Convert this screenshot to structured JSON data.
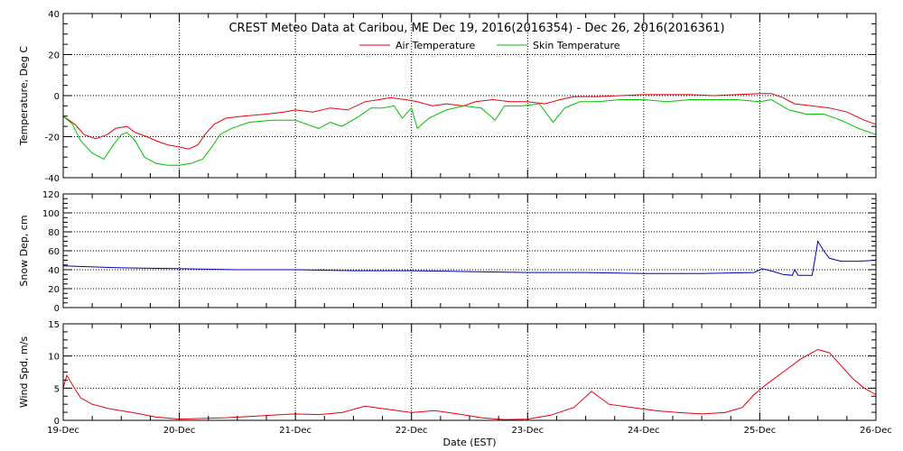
{
  "chart_data": {
    "type": "line",
    "title": "CREST Meteo Data at Caribou, ME   Dec 19, 2016(2016354) - Dec 26, 2016(2016361)",
    "xlabel": "Date (EST)",
    "x_ticks": [
      "19-Dec",
      "20-Dec",
      "21-Dec",
      "22-Dec",
      "23-Dec",
      "24-Dec",
      "25-Dec",
      "26-Dec"
    ],
    "xlim": [
      "19-Dec",
      "26-Dec"
    ],
    "panels": [
      {
        "ylabel": "Temperature, Deg C",
        "ylim": [
          -40,
          40
        ],
        "yticks": [
          -40,
          -20,
          0,
          20,
          40
        ],
        "legend": "top-center",
        "series": [
          {
            "name": "Air Temperature",
            "color": "#e8000b",
            "points": [
              [
                0,
                -10
              ],
              [
                0.1,
                -14
              ],
              [
                0.18,
                -19
              ],
              [
                0.28,
                -21
              ],
              [
                0.38,
                -19
              ],
              [
                0.45,
                -16
              ],
              [
                0.55,
                -15
              ],
              [
                0.62,
                -18
              ],
              [
                0.72,
                -20
              ],
              [
                0.8,
                -22
              ],
              [
                0.9,
                -24
              ],
              [
                1.0,
                -25
              ],
              [
                1.08,
                -26
              ],
              [
                1.16,
                -24
              ],
              [
                1.22,
                -19
              ],
              [
                1.3,
                -14
              ],
              [
                1.4,
                -11
              ],
              [
                1.55,
                -10
              ],
              [
                1.75,
                -9
              ],
              [
                1.9,
                -8
              ],
              [
                2.0,
                -7
              ],
              [
                2.15,
                -8
              ],
              [
                2.3,
                -6
              ],
              [
                2.45,
                -7
              ],
              [
                2.6,
                -3
              ],
              [
                2.72,
                -2
              ],
              [
                2.82,
                -1
              ],
              [
                2.95,
                -2
              ],
              [
                3.05,
                -3
              ],
              [
                3.18,
                -5
              ],
              [
                3.3,
                -4
              ],
              [
                3.45,
                -5
              ],
              [
                3.55,
                -3
              ],
              [
                3.7,
                -2
              ],
              [
                3.85,
                -3
              ],
              [
                4.0,
                -3
              ],
              [
                4.15,
                -4
              ],
              [
                4.28,
                -2
              ],
              [
                4.4,
                -0.5
              ],
              [
                4.6,
                -0.5
              ],
              [
                4.8,
                0
              ],
              [
                5.0,
                0.5
              ],
              [
                5.2,
                0.5
              ],
              [
                5.4,
                0.5
              ],
              [
                5.6,
                0
              ],
              [
                5.8,
                0.5
              ],
              [
                6.0,
                1
              ],
              [
                6.1,
                1
              ],
              [
                6.2,
                -1
              ],
              [
                6.3,
                -4
              ],
              [
                6.45,
                -5
              ],
              [
                6.6,
                -6
              ],
              [
                6.75,
                -8
              ],
              [
                6.9,
                -12
              ],
              [
                7.0,
                -14
              ]
            ]
          },
          {
            "name": "Skin Temperature",
            "color": "#00c000",
            "points": [
              [
                0,
                -10
              ],
              [
                0.08,
                -14
              ],
              [
                0.15,
                -22
              ],
              [
                0.25,
                -28
              ],
              [
                0.35,
                -31
              ],
              [
                0.42,
                -25
              ],
              [
                0.5,
                -19
              ],
              [
                0.55,
                -18
              ],
              [
                0.62,
                -22
              ],
              [
                0.7,
                -30
              ],
              [
                0.8,
                -33
              ],
              [
                0.9,
                -34
              ],
              [
                1.0,
                -34
              ],
              [
                1.1,
                -33
              ],
              [
                1.2,
                -31
              ],
              [
                1.28,
                -25
              ],
              [
                1.35,
                -19
              ],
              [
                1.45,
                -16
              ],
              [
                1.6,
                -13
              ],
              [
                1.8,
                -12
              ],
              [
                2.0,
                -12
              ],
              [
                2.1,
                -14
              ],
              [
                2.2,
                -16
              ],
              [
                2.3,
                -13
              ],
              [
                2.4,
                -15
              ],
              [
                2.55,
                -10
              ],
              [
                2.65,
                -6
              ],
              [
                2.75,
                -6
              ],
              [
                2.85,
                -5
              ],
              [
                2.92,
                -11
              ],
              [
                3.0,
                -6
              ],
              [
                3.05,
                -16
              ],
              [
                3.15,
                -11
              ],
              [
                3.3,
                -7
              ],
              [
                3.45,
                -5
              ],
              [
                3.6,
                -6
              ],
              [
                3.72,
                -12
              ],
              [
                3.8,
                -5
              ],
              [
                3.95,
                -5
              ],
              [
                4.1,
                -4
              ],
              [
                4.22,
                -13
              ],
              [
                4.32,
                -6
              ],
              [
                4.45,
                -3
              ],
              [
                4.6,
                -3
              ],
              [
                4.8,
                -2
              ],
              [
                5.0,
                -2
              ],
              [
                5.2,
                -3
              ],
              [
                5.4,
                -2
              ],
              [
                5.6,
                -2
              ],
              [
                5.8,
                -2
              ],
              [
                6.0,
                -3
              ],
              [
                6.1,
                -2
              ],
              [
                6.25,
                -7
              ],
              [
                6.4,
                -9
              ],
              [
                6.55,
                -9
              ],
              [
                6.7,
                -12
              ],
              [
                6.85,
                -16
              ],
              [
                7.0,
                -19
              ]
            ]
          }
        ]
      },
      {
        "ylabel": "Snow Dep, cm",
        "ylim": [
          0,
          120
        ],
        "yticks": [
          0,
          20,
          40,
          60,
          80,
          100,
          120
        ],
        "series": [
          {
            "color": "#0000b0",
            "points": [
              [
                0,
                44
              ],
              [
                0.5,
                42
              ],
              [
                1.0,
                41
              ],
              [
                1.5,
                40
              ],
              [
                2.0,
                40
              ],
              [
                2.5,
                39
              ],
              [
                3.0,
                39
              ],
              [
                3.5,
                38
              ],
              [
                4.0,
                37
              ],
              [
                4.5,
                37
              ],
              [
                5.0,
                36
              ],
              [
                5.5,
                36
              ],
              [
                5.95,
                37
              ],
              [
                6.02,
                41
              ],
              [
                6.12,
                38
              ],
              [
                6.2,
                35
              ],
              [
                6.28,
                34
              ],
              [
                6.3,
                40
              ],
              [
                6.33,
                34
              ],
              [
                6.45,
                34
              ],
              [
                6.47,
                48
              ],
              [
                6.5,
                70
              ],
              [
                6.55,
                60
              ],
              [
                6.6,
                52
              ],
              [
                6.7,
                49
              ],
              [
                6.85,
                49
              ],
              [
                7.0,
                50
              ]
            ]
          }
        ]
      },
      {
        "ylabel": "Wind Spd, m/s",
        "ylim": [
          0,
          15
        ],
        "yticks": [
          0,
          5,
          10,
          15
        ],
        "series": [
          {
            "color": "#e8000b",
            "points": [
              [
                0,
                5
              ],
              [
                0.03,
                7
              ],
              [
                0.08,
                5.5
              ],
              [
                0.15,
                3.5
              ],
              [
                0.25,
                2.5
              ],
              [
                0.4,
                1.8
              ],
              [
                0.6,
                1.2
              ],
              [
                0.8,
                0.5
              ],
              [
                1.0,
                0.2
              ],
              [
                1.2,
                0.3
              ],
              [
                1.4,
                0.4
              ],
              [
                1.6,
                0.6
              ],
              [
                1.8,
                0.8
              ],
              [
                2.0,
                1.0
              ],
              [
                2.2,
                0.9
              ],
              [
                2.4,
                1.2
              ],
              [
                2.6,
                2.2
              ],
              [
                2.8,
                1.7
              ],
              [
                3.0,
                1.2
              ],
              [
                3.2,
                1.5
              ],
              [
                3.4,
                1.0
              ],
              [
                3.6,
                0.4
              ],
              [
                3.8,
                0.1
              ],
              [
                4.0,
                0.2
              ],
              [
                4.2,
                0.8
              ],
              [
                4.4,
                2.0
              ],
              [
                4.55,
                4.5
              ],
              [
                4.7,
                2.5
              ],
              [
                4.9,
                2.0
              ],
              [
                5.1,
                1.5
              ],
              [
                5.3,
                1.2
              ],
              [
                5.5,
                1.0
              ],
              [
                5.7,
                1.2
              ],
              [
                5.85,
                2.0
              ],
              [
                5.95,
                4.0
              ],
              [
                6.05,
                5.5
              ],
              [
                6.2,
                7.5
              ],
              [
                6.35,
                9.5
              ],
              [
                6.5,
                11
              ],
              [
                6.6,
                10.5
              ],
              [
                6.7,
                8.5
              ],
              [
                6.8,
                6.5
              ],
              [
                6.9,
                5
              ],
              [
                7.0,
                4
              ]
            ]
          }
        ]
      }
    ]
  }
}
